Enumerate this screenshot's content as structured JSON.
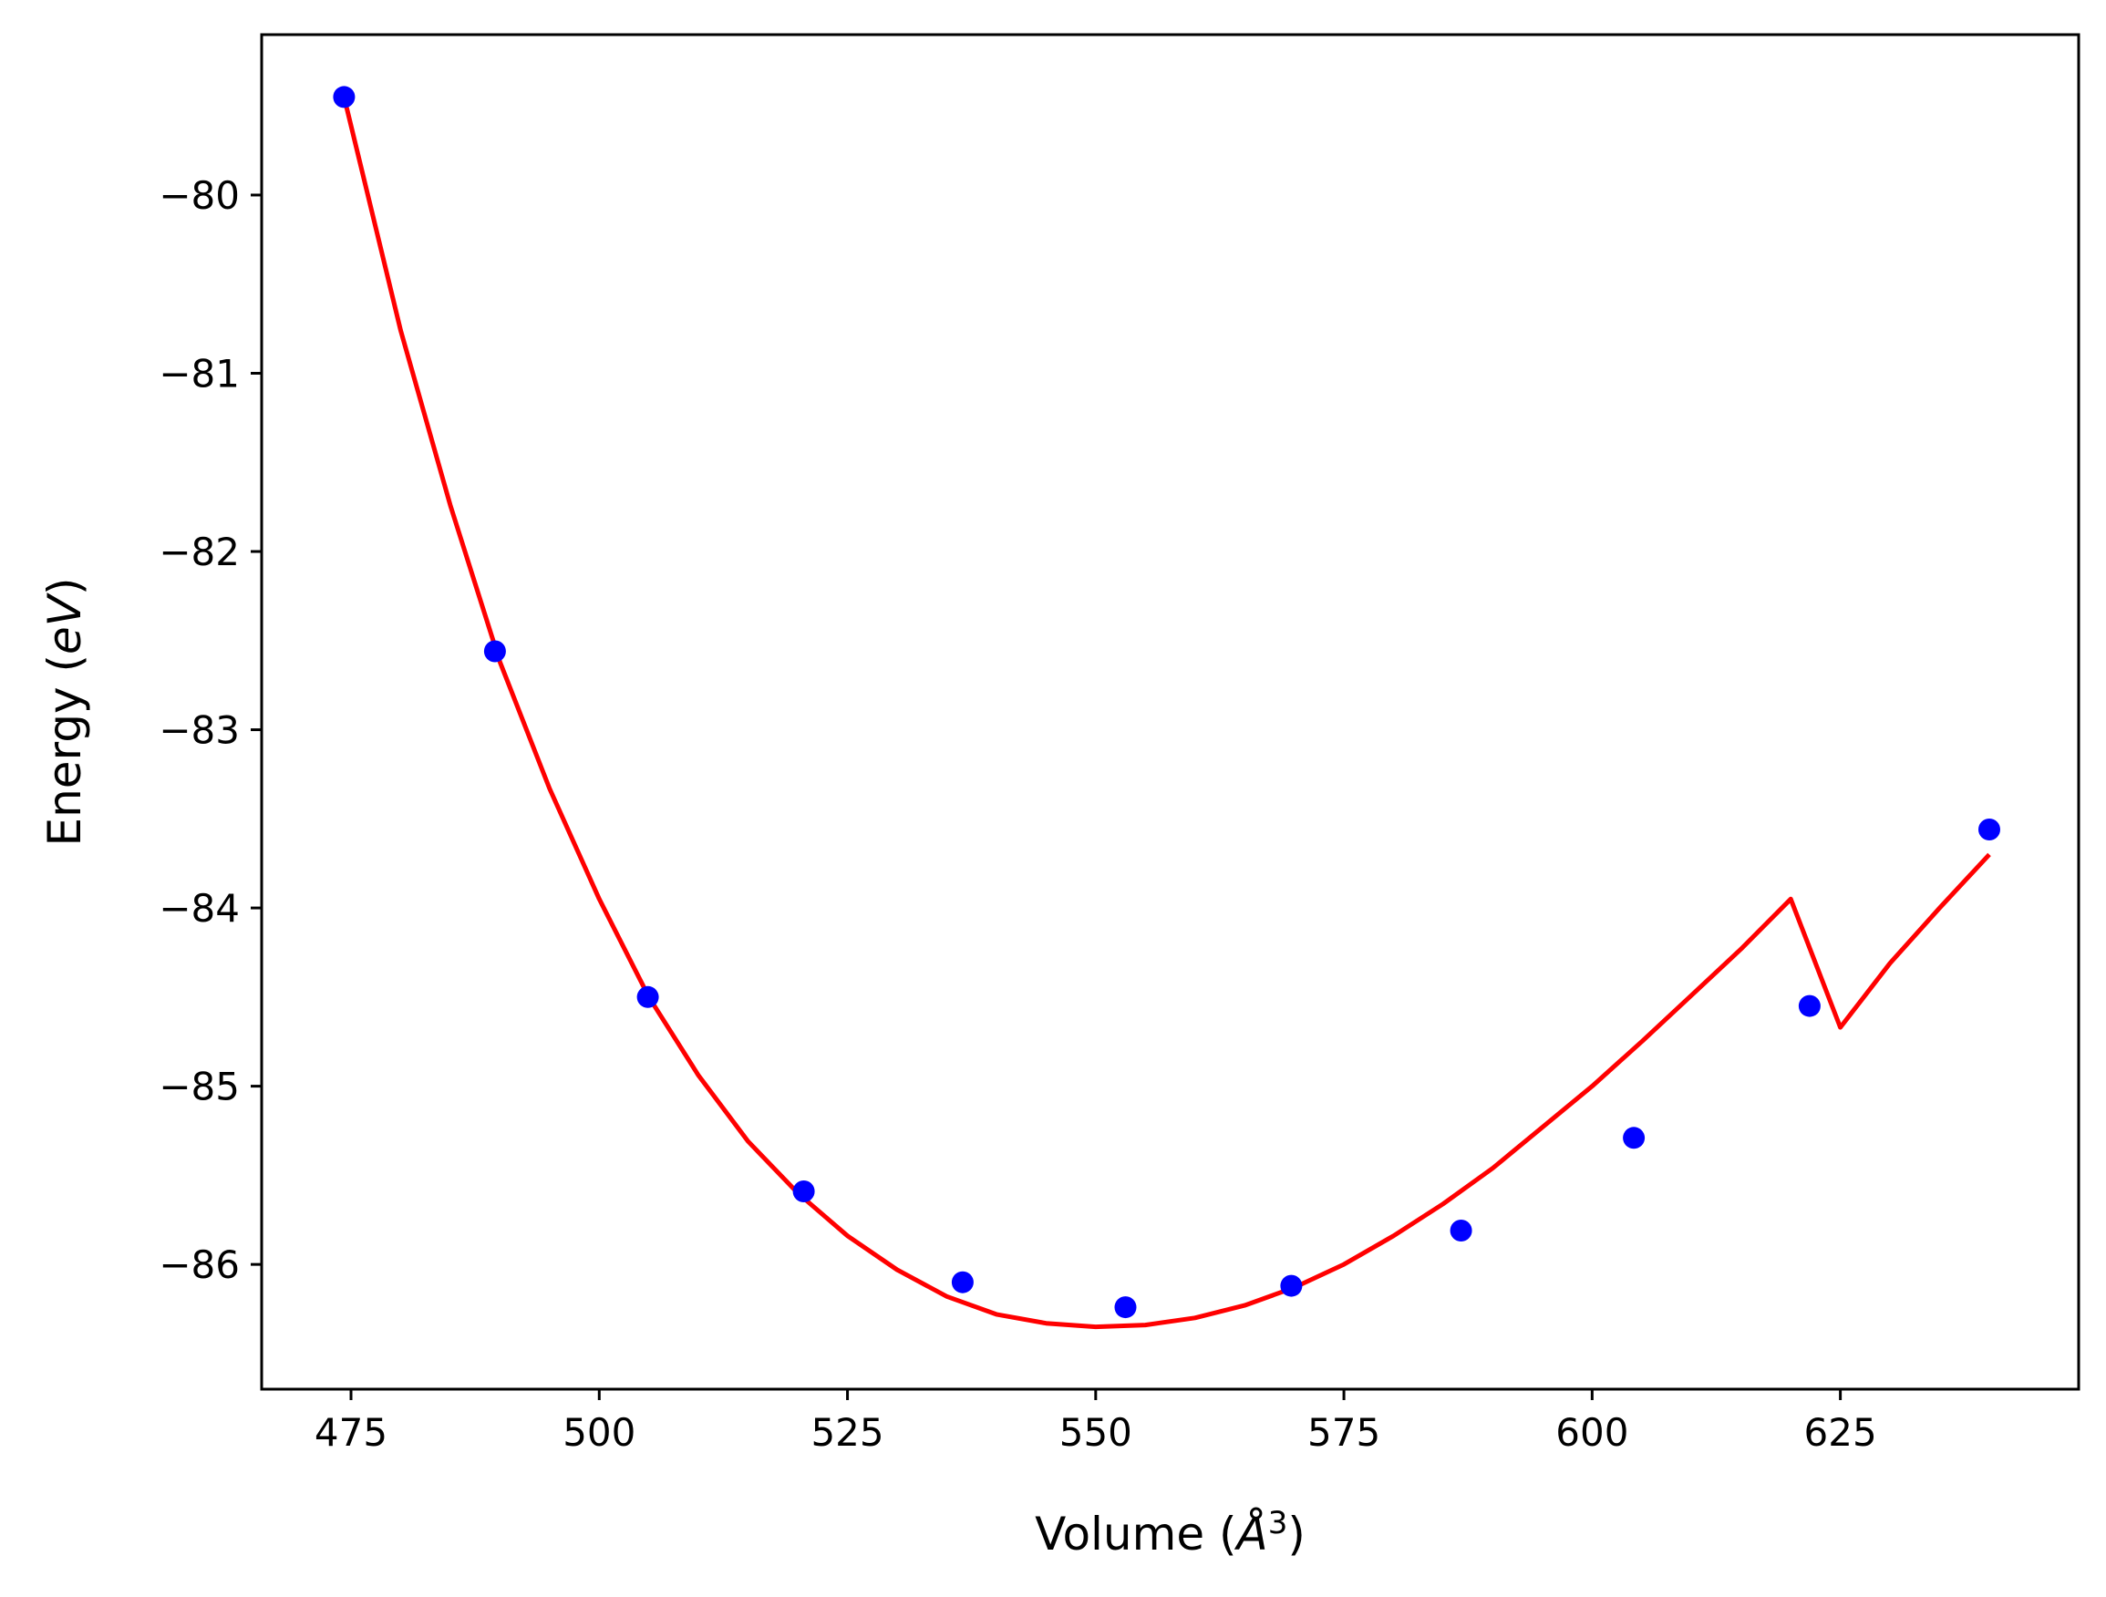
{
  "colors": {
    "points": "#0000ff",
    "fit_line": "#ff0000",
    "axes": "#000000",
    "background": "#ffffff"
  },
  "chart_data": {
    "type": "scatter",
    "title": "",
    "xlabel": "Volume (Å³)",
    "xlabel_parts": {
      "prefix": "Volume (",
      "unit": "Å",
      "exponent": "3",
      "suffix": ")"
    },
    "ylabel": "Energy (eV)",
    "ylabel_parts": {
      "prefix": "Energy (",
      "unit": "eV",
      "suffix": ")"
    },
    "xlim": [
      466,
      649
    ],
    "ylim": [
      -86.7,
      -79.1
    ],
    "xticks": [
      475,
      500,
      525,
      550,
      575,
      600,
      625
    ],
    "xtick_labels": [
      "475",
      "500",
      "525",
      "550",
      "575",
      "600",
      "625"
    ],
    "yticks": [
      -80,
      -81,
      -82,
      -83,
      -84,
      -85,
      -86
    ],
    "ytick_labels": [
      "−80",
      "−81",
      "−82",
      "−83",
      "−84",
      "−85",
      "−86"
    ],
    "grid": false,
    "legend": "none",
    "series": [
      {
        "type": "scatter",
        "color": "#0000ff",
        "x": [
          474.3,
          489.5,
          504.9,
          520.6,
          536.6,
          553.0,
          569.7,
          586.8,
          604.2,
          621.9,
          640.0
        ],
        "y": [
          -79.45,
          -82.56,
          -84.5,
          -85.59,
          -86.1,
          -86.24,
          -86.12,
          -85.81,
          -85.29,
          -84.55,
          -83.56
        ]
      },
      {
        "type": "line",
        "color": "#ff0000",
        "x": [
          474.3,
          480,
          485,
          490,
          495,
          500,
          505,
          510,
          515,
          520,
          525,
          530,
          535,
          540,
          545,
          550,
          555,
          560,
          565,
          570,
          575,
          580,
          585,
          590,
          595,
          600,
          605,
          610,
          615,
          620,
          625,
          630,
          635,
          640
        ],
        "y": [
          -79.45,
          -80.76,
          -81.74,
          -82.62,
          -83.33,
          -83.95,
          -84.5,
          -84.94,
          -85.31,
          -85.6,
          -85.84,
          -86.03,
          -86.18,
          -86.28,
          -86.33,
          -86.35,
          -86.34,
          -86.3,
          -86.23,
          -86.13,
          -86.0,
          -85.84,
          -85.66,
          -85.46,
          -85.23,
          -85.0,
          -84.75,
          -84.49,
          -84.23,
          -83.95,
          -84.67,
          -84.31,
          -84.0,
          -83.7
        ]
      }
    ]
  }
}
